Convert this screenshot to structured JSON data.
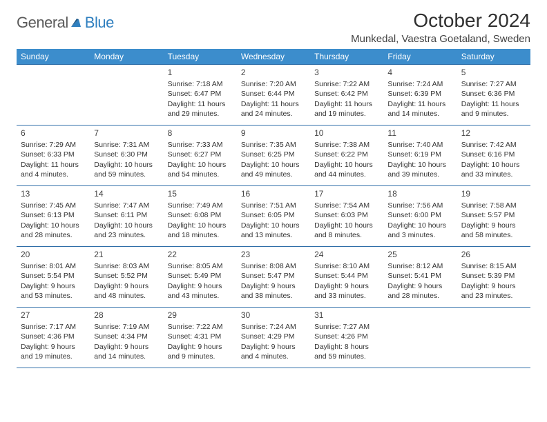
{
  "logo": {
    "text1": "General",
    "text2": "Blue"
  },
  "title": "October 2024",
  "location": "Munkedal, Vaestra Goetaland, Sweden",
  "colors": {
    "header_bg": "#3c8dcc",
    "header_text": "#ffffff",
    "cell_border": "#2f6ea8",
    "body_text": "#333333",
    "title_text": "#303030",
    "logo_gray": "#5a5a5a",
    "logo_blue": "#2f7fbf",
    "background": "#ffffff"
  },
  "typography": {
    "title_fontsize": 28,
    "location_fontsize": 15,
    "dayheader_fontsize": 12,
    "daynum_fontsize": 12,
    "cell_fontsize": 10.5
  },
  "dayHeaders": [
    "Sunday",
    "Monday",
    "Tuesday",
    "Wednesday",
    "Thursday",
    "Friday",
    "Saturday"
  ],
  "weeks": [
    [
      null,
      null,
      {
        "n": "1",
        "sr": "7:18 AM",
        "ss": "6:47 PM",
        "dl": "11 hours and 29 minutes."
      },
      {
        "n": "2",
        "sr": "7:20 AM",
        "ss": "6:44 PM",
        "dl": "11 hours and 24 minutes."
      },
      {
        "n": "3",
        "sr": "7:22 AM",
        "ss": "6:42 PM",
        "dl": "11 hours and 19 minutes."
      },
      {
        "n": "4",
        "sr": "7:24 AM",
        "ss": "6:39 PM",
        "dl": "11 hours and 14 minutes."
      },
      {
        "n": "5",
        "sr": "7:27 AM",
        "ss": "6:36 PM",
        "dl": "11 hours and 9 minutes."
      }
    ],
    [
      {
        "n": "6",
        "sr": "7:29 AM",
        "ss": "6:33 PM",
        "dl": "11 hours and 4 minutes."
      },
      {
        "n": "7",
        "sr": "7:31 AM",
        "ss": "6:30 PM",
        "dl": "10 hours and 59 minutes."
      },
      {
        "n": "8",
        "sr": "7:33 AM",
        "ss": "6:27 PM",
        "dl": "10 hours and 54 minutes."
      },
      {
        "n": "9",
        "sr": "7:35 AM",
        "ss": "6:25 PM",
        "dl": "10 hours and 49 minutes."
      },
      {
        "n": "10",
        "sr": "7:38 AM",
        "ss": "6:22 PM",
        "dl": "10 hours and 44 minutes."
      },
      {
        "n": "11",
        "sr": "7:40 AM",
        "ss": "6:19 PM",
        "dl": "10 hours and 39 minutes."
      },
      {
        "n": "12",
        "sr": "7:42 AM",
        "ss": "6:16 PM",
        "dl": "10 hours and 33 minutes."
      }
    ],
    [
      {
        "n": "13",
        "sr": "7:45 AM",
        "ss": "6:13 PM",
        "dl": "10 hours and 28 minutes."
      },
      {
        "n": "14",
        "sr": "7:47 AM",
        "ss": "6:11 PM",
        "dl": "10 hours and 23 minutes."
      },
      {
        "n": "15",
        "sr": "7:49 AM",
        "ss": "6:08 PM",
        "dl": "10 hours and 18 minutes."
      },
      {
        "n": "16",
        "sr": "7:51 AM",
        "ss": "6:05 PM",
        "dl": "10 hours and 13 minutes."
      },
      {
        "n": "17",
        "sr": "7:54 AM",
        "ss": "6:03 PM",
        "dl": "10 hours and 8 minutes."
      },
      {
        "n": "18",
        "sr": "7:56 AM",
        "ss": "6:00 PM",
        "dl": "10 hours and 3 minutes."
      },
      {
        "n": "19",
        "sr": "7:58 AM",
        "ss": "5:57 PM",
        "dl": "9 hours and 58 minutes."
      }
    ],
    [
      {
        "n": "20",
        "sr": "8:01 AM",
        "ss": "5:54 PM",
        "dl": "9 hours and 53 minutes."
      },
      {
        "n": "21",
        "sr": "8:03 AM",
        "ss": "5:52 PM",
        "dl": "9 hours and 48 minutes."
      },
      {
        "n": "22",
        "sr": "8:05 AM",
        "ss": "5:49 PM",
        "dl": "9 hours and 43 minutes."
      },
      {
        "n": "23",
        "sr": "8:08 AM",
        "ss": "5:47 PM",
        "dl": "9 hours and 38 minutes."
      },
      {
        "n": "24",
        "sr": "8:10 AM",
        "ss": "5:44 PM",
        "dl": "9 hours and 33 minutes."
      },
      {
        "n": "25",
        "sr": "8:12 AM",
        "ss": "5:41 PM",
        "dl": "9 hours and 28 minutes."
      },
      {
        "n": "26",
        "sr": "8:15 AM",
        "ss": "5:39 PM",
        "dl": "9 hours and 23 minutes."
      }
    ],
    [
      {
        "n": "27",
        "sr": "7:17 AM",
        "ss": "4:36 PM",
        "dl": "9 hours and 19 minutes."
      },
      {
        "n": "28",
        "sr": "7:19 AM",
        "ss": "4:34 PM",
        "dl": "9 hours and 14 minutes."
      },
      {
        "n": "29",
        "sr": "7:22 AM",
        "ss": "4:31 PM",
        "dl": "9 hours and 9 minutes."
      },
      {
        "n": "30",
        "sr": "7:24 AM",
        "ss": "4:29 PM",
        "dl": "9 hours and 4 minutes."
      },
      {
        "n": "31",
        "sr": "7:27 AM",
        "ss": "4:26 PM",
        "dl": "8 hours and 59 minutes."
      },
      null,
      null
    ]
  ],
  "labels": {
    "sunrise": "Sunrise:",
    "sunset": "Sunset:",
    "daylight": "Daylight:"
  }
}
